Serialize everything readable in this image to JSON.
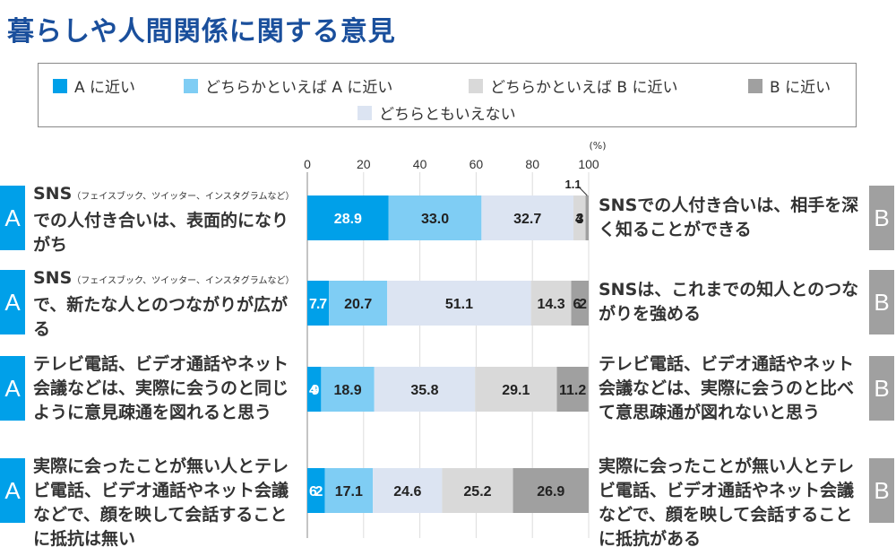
{
  "title": "暮らしや人間関係に関する意見",
  "colors": {
    "A": "#00a0e9",
    "leanA": "#7fcdf4",
    "neither": "#dce4f2",
    "leanB": "#d9d9d9",
    "B": "#a0a0a0",
    "badgeB": "#a0a0a0"
  },
  "chart_data": {
    "type": "bar",
    "orientation": "horizontal",
    "stacked": true,
    "unit_label": "(%)",
    "xlim": [
      0,
      100
    ],
    "ticks": [
      "0",
      "20",
      "40",
      "60",
      "80",
      "100"
    ],
    "grid": true,
    "legend": [
      "A に近い",
      "どちらかといえば A に近い",
      "どちらかといえば B に近い",
      "B に近い",
      "どちらともいえない"
    ],
    "series_order": [
      "A に近い",
      "どちらかといえば A に近い",
      "どちらともいえない",
      "どちらかといえば B に近い",
      "B に近い"
    ],
    "rows": [
      {
        "a_label": "A",
        "a_prefix": "SNS",
        "a_note": "（フェイスブック、ツイッター、インスタグラムなど）",
        "a_text": "での人付き合いは、表面的になりがち",
        "b_label": "B",
        "b_text": "SNSでの人付き合いは、相手を深く知ることができる",
        "values": [
          28.9,
          33.0,
          32.7,
          4.3,
          1.1
        ]
      },
      {
        "a_label": "A",
        "a_prefix": "SNS",
        "a_note": "（フェイスブック、ツイッター、インスタグラムなど）",
        "a_text": "で、新たな人とのつながりが広がる",
        "b_label": "B",
        "b_text": "SNSは、これまでの知人とのつながりを強める",
        "values": [
          7.7,
          20.7,
          51.1,
          14.3,
          6.2
        ]
      },
      {
        "a_label": "A",
        "a_prefix": "",
        "a_note": "",
        "a_text": "テレビ電話、ビデオ通話やネット会議などは、実際に会うのと同じように意見疎通を図れると思う",
        "b_label": "B",
        "b_text": "テレビ電話、ビデオ通話やネット会議などは、実際に会うのと比べて意思疎通が図れないと思う",
        "values": [
          4.9,
          18.9,
          35.8,
          29.1,
          11.2
        ]
      },
      {
        "a_label": "A",
        "a_prefix": "",
        "a_note": "",
        "a_text": "実際に会ったことが無い人とテレビ電話、ビデオ通話やネット会議などで、顔を映して会話することに抵抗は無い",
        "b_label": "B",
        "b_text": "実際に会ったことが無い人とテレビ電話、ビデオ通話やネット会議などで、顔を映して会話することに抵抗がある",
        "values": [
          6.2,
          17.1,
          24.6,
          25.2,
          26.9
        ]
      }
    ]
  }
}
